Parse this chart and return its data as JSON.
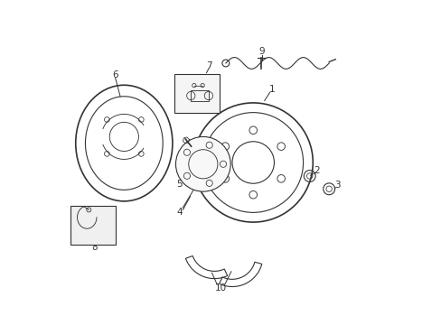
{
  "background_color": "#ffffff",
  "line_color": "#333333",
  "fig_width": 4.89,
  "fig_height": 3.6,
  "dpi": 100
}
